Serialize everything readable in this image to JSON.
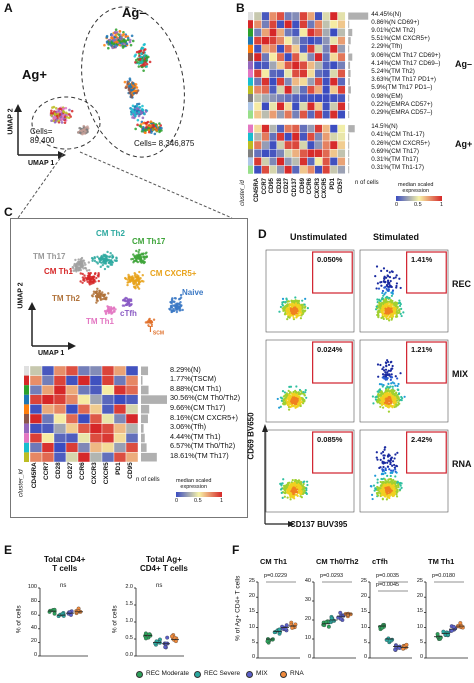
{
  "panels": {
    "a": "A",
    "b": "B",
    "c": "C",
    "d": "D",
    "e": "E",
    "f": "F"
  },
  "a": {
    "ag_minus": "Ag–",
    "ag_plus": "Ag+",
    "umap1": "UMAP 1",
    "umap2": "UMAP 2",
    "cells_ag_plus": "Cells=\n89,400",
    "cells_ag_minus": "Cells= 8,346,875"
  },
  "b": {
    "cluster_id": "cluster_id",
    "ncells_label": "n of cells",
    "group_minus": "Ag–",
    "group_plus": "Ag+",
    "markers": [
      "CD45RA",
      "CCR7",
      "CD95",
      "CD28",
      "CD27",
      "CD137",
      "CD69",
      "CCR6",
      "CXCR3",
      "CXCR5",
      "PD1",
      "CD57"
    ],
    "rows_minus": [
      "44.45%(N)",
      "0.86%(N CD69+)",
      "9.01%(CM Th2)",
      "5.51%(CM CXCR5+)",
      "2.29%(Tfh)",
      "9.06%(CM Th17 CD69+)",
      "4.14%(CM Th17 CD69–)",
      "5.24%(TM Th2)",
      "3.63%(TM Th17 PD1+)",
      "5.9%(TM Th17 PD1–)",
      "0.98%(EM)",
      "0.22%(EMRA CD57+)",
      "0.29%(EMRA CD57–)"
    ],
    "rows_plus": [
      "14.5%(N)",
      "0.41%(CM Th1-17)",
      "0.26%(CM CXCR5+)",
      "0.69%(CM Th17)",
      "0.31%(TM Th17)",
      "0.31%(TM Th1-17)"
    ],
    "legend_title": "median scaled\nexpression",
    "legend_ticks": [
      "0",
      "0.5",
      "1"
    ]
  },
  "c": {
    "umap1": "UMAP 1",
    "umap2": "UMAP 2",
    "cluster_labels": [
      "CM Th2",
      "CM Th17",
      "TM Th17",
      "CM Th1",
      "TM Th2",
      "CM CXCR5+",
      "TM Th1",
      "cTfh",
      "Naive",
      "T"
    ],
    "tscm_sub": "SCM",
    "markers": [
      "CD45RA",
      "CCR7",
      "CD28",
      "CD27",
      "CCR6",
      "CXCR3",
      "CXCR5",
      "PD1",
      "CD95"
    ],
    "rows": [
      "8.29%(N)",
      "1.77%(TSCM)",
      "8.88%(CM Th1)",
      "30.56%(CM Th0/Th2)",
      "9.66%(CM Th17)",
      "8.16%(CM CXCR5+)",
      "3.06%(Tfh)",
      "4.44%(TM Th1)",
      "6.57%(TM Th0/Th2)",
      "18.61%(TM Th17)"
    ],
    "cluster_id": "cluster_id",
    "ncells_label": "n of cells",
    "legend_title": "median scaled\nexpression",
    "legend_ticks": [
      "0",
      "0.5",
      "1"
    ]
  },
  "d": {
    "col_unstim": "Unstimulated",
    "col_stim": "Stimulated",
    "rows": [
      {
        "name": "REC",
        "unstim": "0.050%",
        "stim": "1.41%"
      },
      {
        "name": "MIX",
        "unstim": "0.024%",
        "stim": "1.21%"
      },
      {
        "name": "RNA",
        "unstim": "0.085%",
        "stim": "2.42%"
      }
    ],
    "yaxis": "CD69 BV650",
    "xaxis": "CD137 BUV395"
  },
  "e": {
    "title1": "Total CD4+\nT cells",
    "title2": "Total Ag+\nCD4+ T cells",
    "ylabel": "% of cells",
    "ns": "ns",
    "ticks1": [
      "100",
      "80",
      "60",
      "40",
      "20",
      "0"
    ],
    "ticks2": [
      "2.0",
      "1.5",
      "1.0",
      "0.5",
      "0.0"
    ]
  },
  "f": {
    "ylabel": "% of Ag+ CD4+ T cells",
    "plots": [
      {
        "title": "CM Th1",
        "pvals": [
          "p=0.0229"
        ],
        "ticks": [
          "25",
          "20",
          "15",
          "10",
          "5",
          "0"
        ]
      },
      {
        "title": "CM Th0/Th2",
        "pvals": [
          "p=0.0293"
        ],
        "ticks": [
          "40",
          "30",
          "20",
          "10",
          "0"
        ]
      },
      {
        "title": "cTfh",
        "pvals": [
          "p=0.0035",
          "p=0.0045"
        ],
        "ticks": [
          "25",
          "20",
          "15",
          "10",
          "5",
          "0"
        ]
      },
      {
        "title": "TM Th1",
        "pvals": [
          "p=0.0180"
        ],
        "ticks": [
          "25",
          "20",
          "15",
          "10",
          "5",
          "0"
        ]
      }
    ]
  },
  "legend": {
    "items": [
      {
        "label": "REC Moderate",
        "color": "#2ca05a"
      },
      {
        "label": "REC Severe",
        "color": "#2aa8a0"
      },
      {
        "label": "MIX",
        "color": "#5a5fc8"
      },
      {
        "label": "RNA",
        "color": "#f08a3c"
      }
    ]
  },
  "colors": {
    "heat_low": "#3b4cc0",
    "heat_mid": "#f7f3a8",
    "heat_high": "#d62728",
    "ncells_bar": "#b0b0b0",
    "box_red": "#d0202c"
  }
}
